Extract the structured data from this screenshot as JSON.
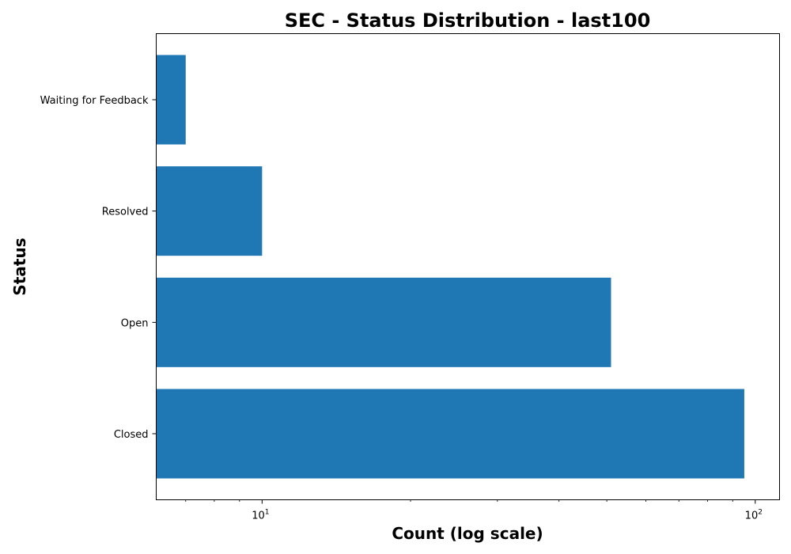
{
  "chart_data": {
    "type": "bar",
    "orientation": "horizontal",
    "title": "SEC - Status Distribution - last100",
    "xlabel": "Count (log scale)",
    "ylabel": "Status",
    "x_scale": "log",
    "xlim": [
      6.1,
      112
    ],
    "categories": [
      "Closed",
      "Open",
      "Resolved",
      "Waiting for Feedback"
    ],
    "values": [
      95,
      51,
      10,
      7
    ],
    "major_ticks": [
      {
        "value": 10,
        "base": "10",
        "exponent": "1"
      },
      {
        "value": 100,
        "base": "10",
        "exponent": "2"
      }
    ],
    "minor_ticks": [
      7,
      8,
      9,
      20,
      30,
      40,
      50,
      60,
      70,
      80,
      90
    ],
    "grid": false,
    "bar_color": "#1f77b4"
  }
}
